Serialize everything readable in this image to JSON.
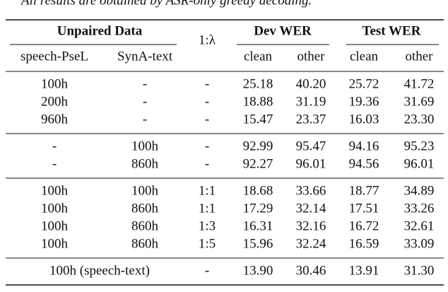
{
  "caption": "All results are obtained by ASR-only greedy decoding.",
  "header": {
    "unpaired": "Unpaired Data",
    "ratio": "1:λ",
    "dev": "Dev WER",
    "test": "Test WER",
    "sub": [
      "speech-PseL",
      "SynA-text",
      "clean",
      "other",
      "clean",
      "other"
    ]
  },
  "row_groups": [
    [
      [
        "100h",
        "-",
        "-",
        "25.18",
        "40.20",
        "25.72",
        "41.72"
      ],
      [
        "200h",
        "-",
        "-",
        "18.88",
        "31.19",
        "19.36",
        "31.69"
      ],
      [
        "960h",
        "-",
        "-",
        "15.47",
        "23.37",
        "16.03",
        "23.30"
      ]
    ],
    [
      [
        "-",
        "100h",
        "-",
        "92.99",
        "95.47",
        "94.16",
        "95.23"
      ],
      [
        "-",
        "860h",
        "-",
        "92.27",
        "96.01",
        "94.56",
        "96.01"
      ]
    ],
    [
      [
        "100h",
        "100h",
        "1:1",
        "18.68",
        "33.66",
        "18.77",
        "34.89"
      ],
      [
        "100h",
        "860h",
        "1:1",
        "17.29",
        "32.14",
        "17.51",
        "33.26"
      ],
      [
        "100h",
        "860h",
        "1:3",
        "16.31",
        "32.16",
        "16.72",
        "32.61"
      ],
      [
        "100h",
        "860h",
        "1:5",
        "15.96",
        "32.24",
        "16.59",
        "33.09"
      ]
    ],
    [
      [
        "100h (speech-text)",
        "-",
        "13.90",
        "30.46",
        "13.91",
        "31.30"
      ]
    ]
  ]
}
